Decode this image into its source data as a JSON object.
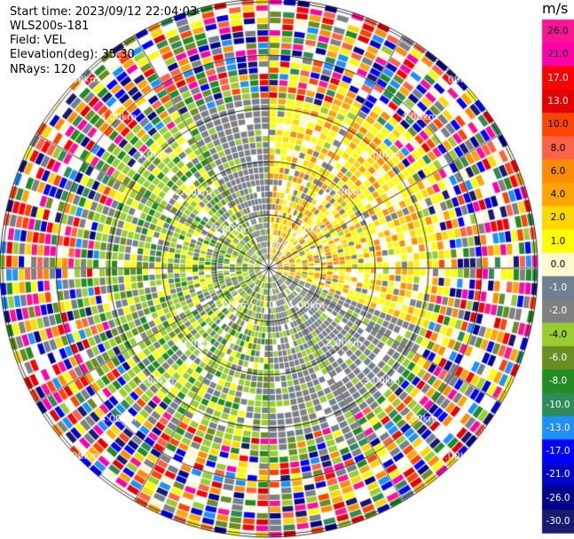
{
  "header": {
    "start_time": "Start time: 2023/09/12 22:04:03",
    "site": "WLS200s-181",
    "field": "Field: VEL",
    "elevation": "Elevation(deg): 35.30",
    "nrays": "NRays: 120"
  },
  "colorbar": {
    "unit": "m/s",
    "labels": [
      "26.0",
      "21.0",
      "17.0",
      "13.0",
      "10.0",
      "8.0",
      "6.0",
      "4.0",
      "2.0",
      "1.0",
      "0.0",
      "-1.0",
      "-2.0",
      "-4.0",
      "-6.0",
      "-8.0",
      "-10.0",
      "-13.0",
      "-17.0",
      "-21.0",
      "-26.0",
      "-30.0"
    ],
    "colors": [
      "#ff1493",
      "#ff00aa",
      "#ff0000",
      "#e00000",
      "#ff4500",
      "#ff6347",
      "#ff8c00",
      "#ffa500",
      "#ffd700",
      "#ffff00",
      "#fffacd",
      "#708090",
      "#808080",
      "#9acd32",
      "#6b8e23",
      "#228b22",
      "#2e8b57",
      "#1e90ff",
      "#0000ff",
      "#0000cd",
      "#00008b",
      "#191970"
    ]
  },
  "chart_data": {
    "type": "heatmap",
    "subtype": "ppi",
    "field": "VEL",
    "unit": "m/s",
    "range_rings_km": [
      1.0,
      2.0,
      3.0,
      4.0,
      5.0
    ],
    "ring_labels": [
      "1.00km",
      "2.00km",
      "3.00km",
      "4.00km",
      "5.00km"
    ],
    "nrays": 120,
    "elevation_deg": 35.3,
    "spokes_deg": [
      0,
      30,
      60,
      90,
      120,
      150,
      180,
      210,
      240,
      270,
      300,
      330
    ],
    "pattern": {
      "positive_sector_deg": [
        0,
        110
      ],
      "negative_sector_deg": [
        180,
        330
      ],
      "near_field_max_km": 3.2,
      "noise_beyond_km": 3.6
    }
  }
}
